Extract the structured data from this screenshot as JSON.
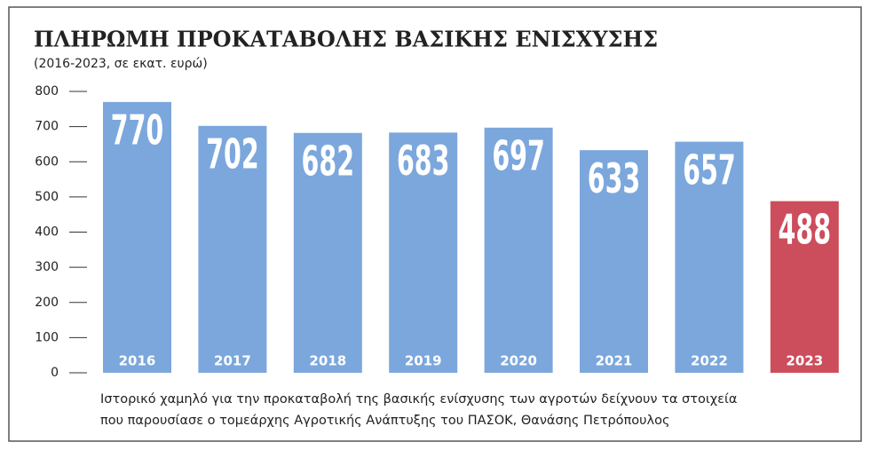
{
  "chart_data": {
    "type": "bar",
    "title": "ΠΛΗΡΩΜΗ ΠΡΟΚΑΤΑΒΟΛΗΣ ΒΑΣΙΚΗΣ ΕΝΙΣΧΥΣΗΣ",
    "subtitle": "(2016-2023, σε εκατ. ευρώ)",
    "categories": [
      "2016",
      "2017",
      "2018",
      "2019",
      "2020",
      "2021",
      "2022",
      "2023"
    ],
    "values": [
      770,
      702,
      682,
      683,
      697,
      633,
      657,
      488
    ],
    "colors": [
      "#7ba7dc",
      "#7ba7dc",
      "#7ba7dc",
      "#7ba7dc",
      "#7ba7dc",
      "#7ba7dc",
      "#7ba7dc",
      "#cc4d5c"
    ],
    "ylim": [
      0,
      800
    ],
    "yticks": [
      0,
      100,
      200,
      300,
      400,
      500,
      600,
      700,
      800
    ],
    "caption": [
      "Ιστορικό χαμηλό για την προκαταβολή της βασικής ενίσχυσης των αγροτών δείχνουν τα στοιχεία",
      "που παρουσίασε ο τομεάρχης Αγροτικής Ανάπτυξης του ΠΑΣΟΚ, Θανάσης Πετρόπουλος"
    ]
  }
}
